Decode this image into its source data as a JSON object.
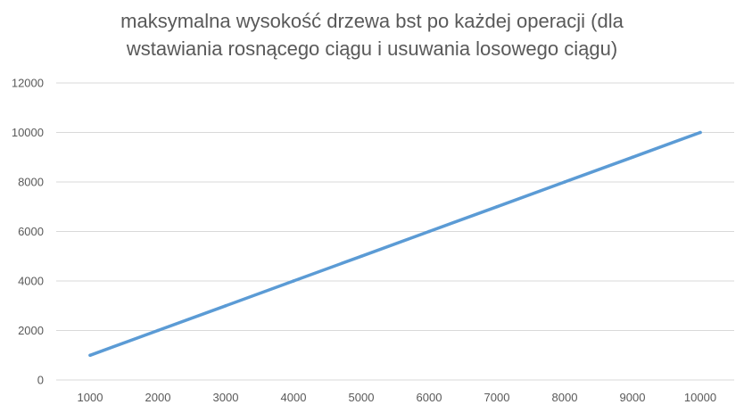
{
  "chart_data": {
    "type": "line",
    "title": "maksymalna wysokość drzewa bst po każdej operacji (dla wstawiania rosnącego ciągu i usuwania losowego ciągu)",
    "title_lines": [
      "maksymalna wysokość drzewa bst po każdej operacji (dla",
      "wstawiania rosnącego ciągu i usuwania losowego ciągu)"
    ],
    "xlabel": "",
    "ylabel": "",
    "categories": [
      "1000",
      "2000",
      "3000",
      "4000",
      "5000",
      "6000",
      "7000",
      "8000",
      "9000",
      "10000"
    ],
    "series": [
      {
        "values": [
          999,
          1999,
          2999,
          3999,
          4999,
          5999,
          6999,
          7999,
          8999,
          9999
        ],
        "color": "#5b9bd5"
      }
    ],
    "ylim": [
      0,
      12000
    ],
    "yticks": [
      "0",
      "2000",
      "4000",
      "6000",
      "8000",
      "10000",
      "12000"
    ],
    "grid": true,
    "legend": "none",
    "gridline_color": "#d9d9d9",
    "text_color": "#595959"
  }
}
